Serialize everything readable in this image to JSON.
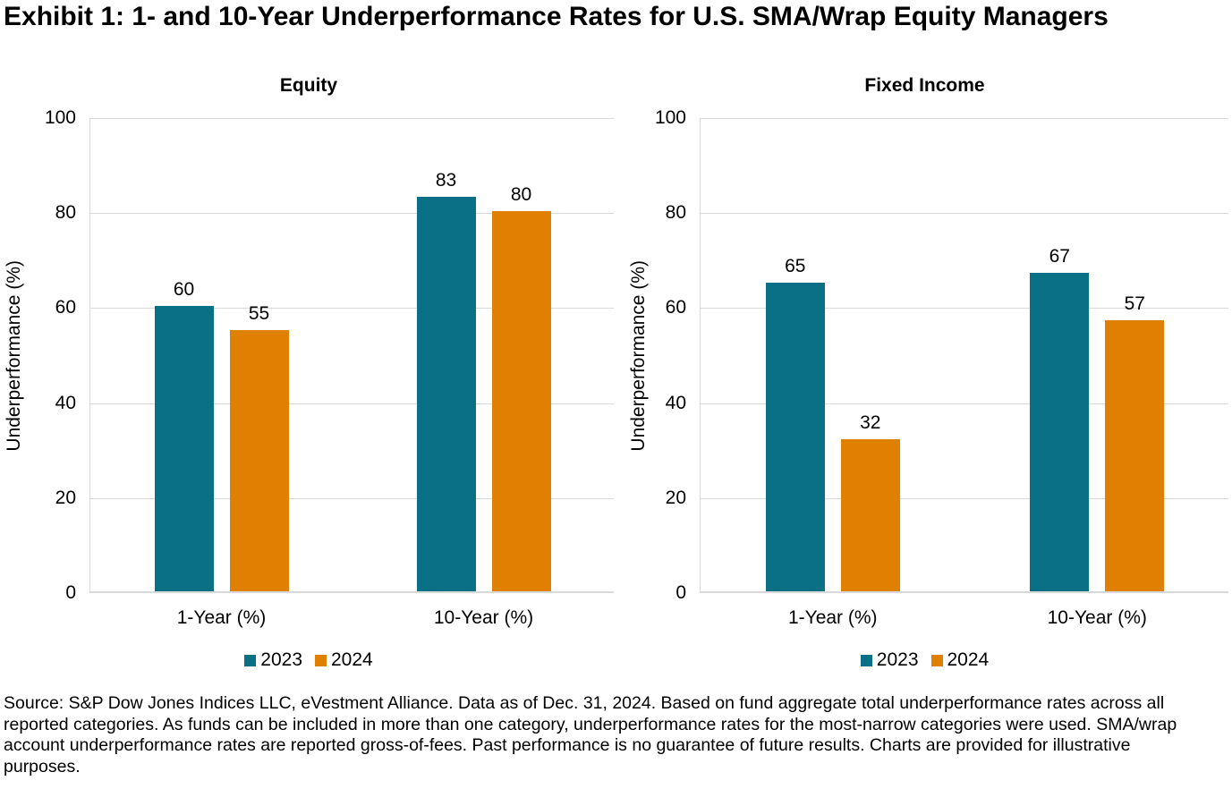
{
  "title": "Exhibit 1: 1- and 10-Year Underperformance Rates for U.S. SMA/Wrap Equity Managers",
  "source_note": "Source: S&P Dow Jones Indices LLC, eVestment Alliance. Data as of Dec. 31, 2024. Based on fund aggregate total underperformance rates across all reported categories. As funds can be included in more than one category, underperformance rates for the most-narrow categories were used. SMA/wrap account underperformance rates are reported gross-of-fees. Past performance is no guarantee of future results. Charts are provided for illustrative purposes.",
  "colors": {
    "series_2023": "#0A7086",
    "series_2024": "#DF8002",
    "gridline": "#D9D9D9",
    "axis_line": "#D9D9D9",
    "text": "#000000"
  },
  "chart_data": [
    {
      "type": "bar",
      "title": "Equity",
      "categories": [
        "1-Year (%)",
        "10-Year (%)"
      ],
      "series": [
        {
          "name": "2023",
          "values": [
            60,
            83
          ]
        },
        {
          "name": "2024",
          "values": [
            55,
            80
          ]
        }
      ],
      "xlabel": "",
      "ylabel": "Underperformance (%)",
      "ylim": [
        0,
        100
      ],
      "yticks": [
        0,
        20,
        40,
        60,
        80,
        100
      ],
      "grid": true,
      "data_labels": true,
      "legend_position": "bottom"
    },
    {
      "type": "bar",
      "title": "Fixed Income",
      "categories": [
        "1-Year (%)",
        "10-Year (%)"
      ],
      "series": [
        {
          "name": "2023",
          "values": [
            65,
            67
          ]
        },
        {
          "name": "2024",
          "values": [
            32,
            57
          ]
        }
      ],
      "xlabel": "",
      "ylabel": "Underperformance (%)",
      "ylim": [
        0,
        100
      ],
      "yticks": [
        0,
        20,
        40,
        60,
        80,
        100
      ],
      "grid": true,
      "data_labels": true,
      "legend_position": "bottom"
    }
  ]
}
